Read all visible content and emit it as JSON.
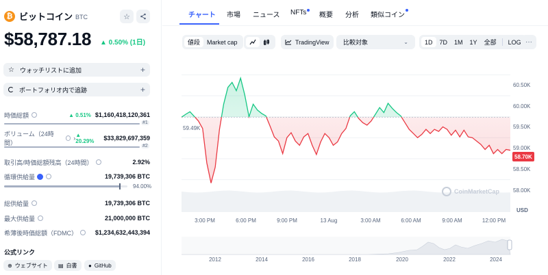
{
  "coin": {
    "name": "ビットコイン",
    "symbol": "BTC",
    "logo_glyph": "₿",
    "price": "$58,787.18",
    "change": "▲ 0.50% (1日)"
  },
  "actions": {
    "watchlist": "ウォッチリストに追加",
    "portfolio": "ポートフォリオ内で追跡"
  },
  "stats": [
    {
      "label": "時価総額",
      "change": "▲ 0.51%",
      "value": "$1,160,418,120,361",
      "rank": "#1"
    },
    {
      "label": "ボリューム（24時間）",
      "change": "▲ 20.29%",
      "value": "$33,829,697,359",
      "rank": "#2"
    },
    {
      "label": "取引高/時価総額残高（24時間）",
      "value": "2.92%"
    },
    {
      "label": "循環供給量",
      "value": "19,739,306 BTC",
      "supply_pct": "94.00%",
      "supply_fraction": 0.94
    },
    {
      "label": "総供給量",
      "value": "19,739,306 BTC"
    },
    {
      "label": "最大供給量",
      "value": "21,000,000 BTC"
    },
    {
      "label": "希薄後時価総額（FDMC）",
      "value": "$1,234,632,443,394"
    }
  ],
  "links": {
    "title": "公式リンク",
    "items": [
      "ウェブサイト",
      "白書",
      "GitHub"
    ]
  },
  "tabs": [
    "チャート",
    "市場",
    "ニュース",
    "NFTs",
    "概要",
    "分析",
    "類似コイン"
  ],
  "toolbar": {
    "price_label": "値段",
    "mcap_label": "Market cap",
    "tradingview": "TradingView",
    "compare": "比較対象",
    "ranges": [
      "1D",
      "7D",
      "1M",
      "1Y",
      "全部"
    ],
    "log": "LOG",
    "more": "···"
  },
  "chart_meta": {
    "open_tag": "59.49K",
    "current_tag": "58.70K",
    "currency": "USD",
    "watermark": "CoinMarketCap"
  },
  "chart_data": {
    "type": "line",
    "title": "",
    "y_ticks": [
      "60.50K",
      "60.00K",
      "59.50K",
      "59.00K",
      "58.50K",
      "58.00K"
    ],
    "ylim": [
      57.75,
      60.75
    ],
    "x_ticks": [
      "3:00 PM",
      "6:00 PM",
      "9:00 PM",
      "13 Aug",
      "3:00 AM",
      "6:00 AM",
      "9:00 AM",
      "12:00 PM"
    ],
    "baseline": 59.49,
    "series": [
      {
        "values": [
          59.49,
          59.56,
          59.62,
          59.51,
          59.4,
          59.22,
          58.4,
          57.92,
          58.3,
          59.2,
          59.8,
          60.2,
          60.32,
          60.12,
          60.42,
          60.02,
          59.5,
          59.8,
          59.66,
          59.58,
          59.52,
          59.28,
          59.02,
          58.92,
          58.62,
          59.0,
          59.12,
          58.92,
          58.82,
          59.02,
          59.1,
          58.82,
          58.6,
          58.9,
          59.1,
          59.0,
          58.82,
          58.9,
          59.1,
          59.22,
          59.52,
          59.62,
          59.46,
          59.36,
          59.3,
          59.4,
          59.56,
          59.72,
          59.6,
          59.82,
          59.7,
          59.6,
          59.52,
          59.36,
          59.2,
          59.1,
          59.0,
          59.08,
          59.2,
          59.1,
          59.2,
          59.15,
          59.26,
          59.2,
          59.06,
          59.18,
          59.02,
          59.18,
          59.02,
          59.0,
          58.92,
          58.84,
          58.72,
          58.82,
          58.62,
          58.72,
          58.62,
          58.72,
          58.7
        ]
      }
    ]
  },
  "navigator": {
    "years": [
      "2012",
      "2014",
      "2016",
      "2018",
      "2020",
      "2022",
      "2024"
    ]
  }
}
